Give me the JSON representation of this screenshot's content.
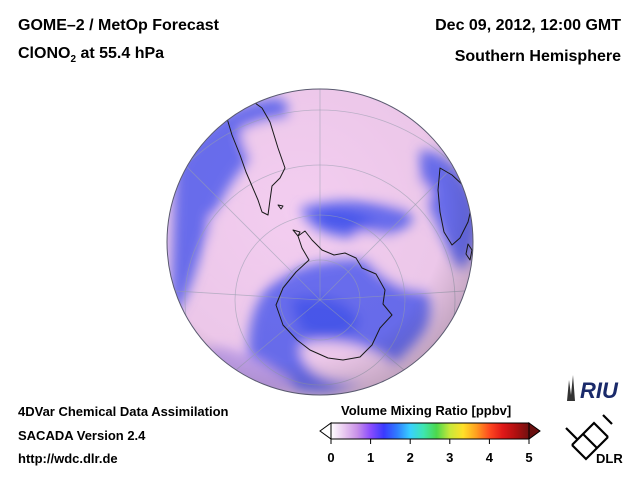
{
  "header": {
    "title_line1": "GOME–2 / MetOp Forecast",
    "species_prefix": "ClONO",
    "species_subscript": "2",
    "species_suffix": " at 55.4 hPa",
    "datetime": "Dec 09, 2012, 12:00 GMT",
    "region": "Southern Hemisphere"
  },
  "footer": {
    "line1": "4DVar Chemical Data Assimilation",
    "line2": "SACADA Version 2.4",
    "line3": "http://wdc.dlr.de"
  },
  "colorbar": {
    "title": "Volume Mixing Ratio [ppbv]",
    "min": 0,
    "max": 5,
    "tick_labels": [
      "0",
      "1",
      "2",
      "3",
      "4",
      "5"
    ],
    "colors": [
      "#ffffff",
      "#e8c8f0",
      "#c890e8",
      "#8a4cff",
      "#3a3aff",
      "#2f7cff",
      "#38d0ff",
      "#3ee6b0",
      "#4cd84c",
      "#c8e83a",
      "#ffe028",
      "#ffa020",
      "#ff4a20",
      "#e01818",
      "#b01010",
      "#701010"
    ]
  },
  "map": {
    "projection": "orthographic south polar",
    "field_colors": {
      "low": "#f3cdf0",
      "mid": "#c9a6f2",
      "high": "#6a6ef0",
      "peak": "#4a58ee"
    }
  },
  "logos": {
    "riu_text": "RIU",
    "dlr_text": "DLR"
  }
}
